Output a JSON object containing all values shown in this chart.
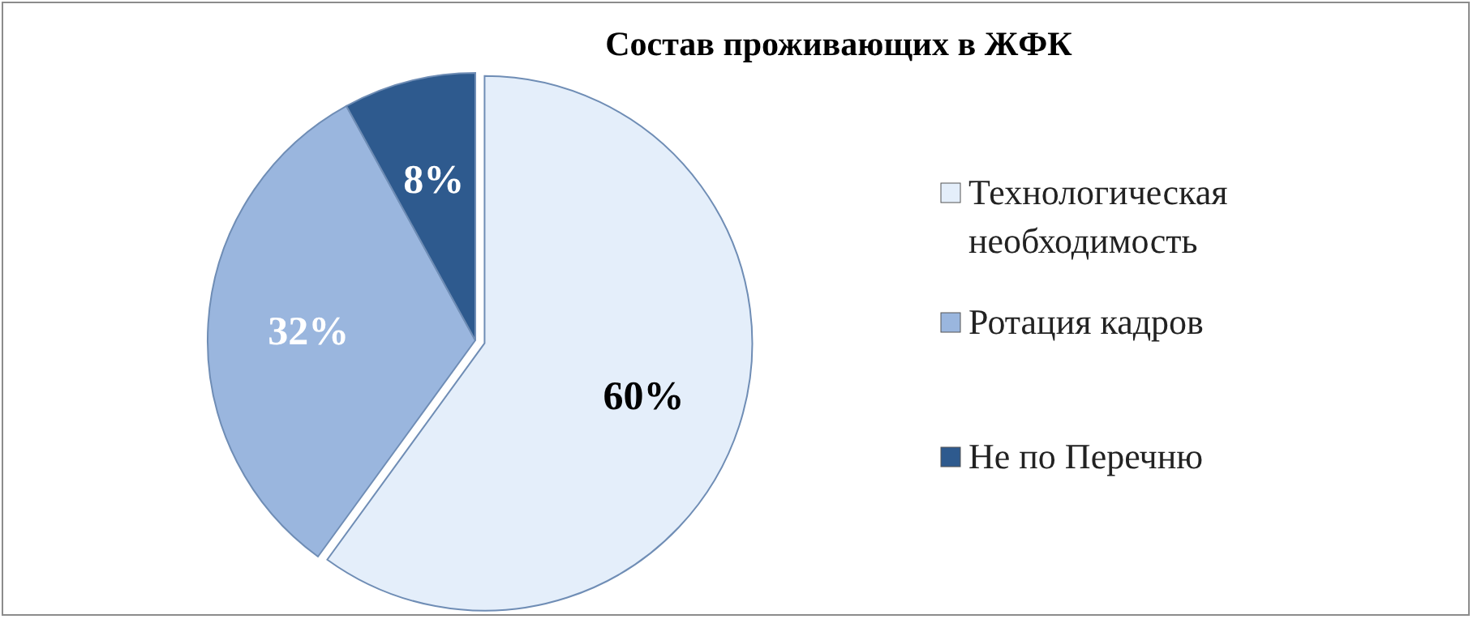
{
  "chart_data": {
    "type": "pie",
    "title": "Состав проживающих в ЖФК",
    "categories": [
      "Технологическая необходимость",
      "Ротация кадров",
      "Не по Перечню"
    ],
    "values": [
      60,
      32,
      8
    ],
    "colors": [
      "#e4eefa",
      "#9ab6de",
      "#2e5a8e"
    ],
    "value_labels": [
      "60%",
      "32%",
      "8%"
    ],
    "legend": "right"
  }
}
